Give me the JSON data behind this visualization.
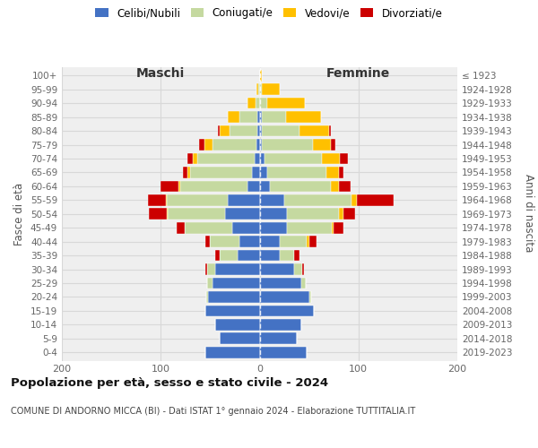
{
  "age_groups": [
    "0-4",
    "5-9",
    "10-14",
    "15-19",
    "20-24",
    "25-29",
    "30-34",
    "35-39",
    "40-44",
    "45-49",
    "50-54",
    "55-59",
    "60-64",
    "65-69",
    "70-74",
    "75-79",
    "80-84",
    "85-89",
    "90-94",
    "95-99",
    "100+"
  ],
  "birth_years": [
    "2019-2023",
    "2014-2018",
    "2009-2013",
    "2004-2008",
    "1999-2003",
    "1994-1998",
    "1989-1993",
    "1984-1988",
    "1979-1983",
    "1974-1978",
    "1969-1973",
    "1964-1968",
    "1959-1963",
    "1954-1958",
    "1949-1953",
    "1944-1948",
    "1939-1943",
    "1934-1938",
    "1929-1933",
    "1924-1928",
    "≤ 1923"
  ],
  "colors": {
    "celibi": "#4472c4",
    "coniugati": "#c5d9a0",
    "vedovi": "#ffc000",
    "divorziati": "#cc0000"
  },
  "male": {
    "celibi": [
      55,
      40,
      45,
      55,
      52,
      48,
      45,
      22,
      20,
      28,
      35,
      32,
      12,
      8,
      5,
      3,
      2,
      2,
      0,
      0,
      0
    ],
    "coniugati": [
      0,
      0,
      0,
      0,
      2,
      5,
      8,
      18,
      30,
      48,
      58,
      62,
      68,
      62,
      58,
      45,
      28,
      18,
      4,
      1,
      0
    ],
    "vedovi": [
      0,
      0,
      0,
      0,
      0,
      0,
      0,
      0,
      0,
      0,
      1,
      1,
      2,
      3,
      5,
      8,
      10,
      12,
      8,
      2,
      0
    ],
    "divorziati": [
      0,
      0,
      0,
      0,
      0,
      0,
      2,
      5,
      5,
      8,
      18,
      18,
      18,
      5,
      5,
      5,
      2,
      0,
      0,
      0,
      0
    ]
  },
  "female": {
    "celibi": [
      48,
      38,
      42,
      55,
      50,
      42,
      35,
      20,
      20,
      28,
      28,
      25,
      10,
      8,
      5,
      2,
      2,
      2,
      0,
      0,
      0
    ],
    "coniugati": [
      0,
      0,
      0,
      0,
      2,
      5,
      8,
      15,
      28,
      45,
      52,
      68,
      62,
      60,
      58,
      52,
      38,
      25,
      8,
      2,
      0
    ],
    "vedovi": [
      0,
      0,
      0,
      0,
      0,
      0,
      0,
      0,
      2,
      2,
      5,
      5,
      8,
      12,
      18,
      18,
      30,
      35,
      38,
      18,
      2
    ],
    "divorziati": [
      0,
      0,
      0,
      0,
      0,
      0,
      2,
      5,
      8,
      10,
      12,
      38,
      12,
      5,
      8,
      5,
      2,
      0,
      0,
      0,
      0
    ]
  },
  "title": "Popolazione per età, sesso e stato civile - 2024",
  "subtitle": "COMUNE DI ANDORNO MICCA (BI) - Dati ISTAT 1° gennaio 2024 - Elaborazione TUTTITALIA.IT",
  "xlabel_left": "Maschi",
  "xlabel_right": "Femmine",
  "ylabel_left": "Fasce di età",
  "ylabel_right": "Anni di nascita",
  "xlim": 200,
  "bg_color": "#efefef",
  "grid_color": "#d8d8d8"
}
